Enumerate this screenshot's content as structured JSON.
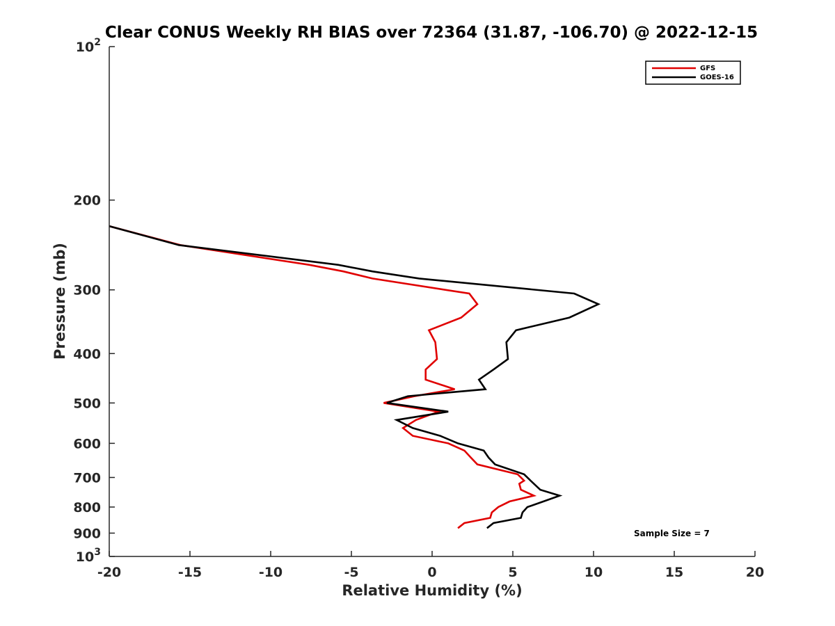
{
  "chart_data": {
    "type": "line",
    "title": "Clear CONUS Weekly RH BIAS over 72364 (31.87, -106.70) @ 2022-12-15",
    "xlabel": "Relative Humidity (%)",
    "ylabel": "Pressure (mb)",
    "xlim": [
      -20,
      20
    ],
    "ylim": [
      100,
      1000
    ],
    "yscale": "log",
    "y_reversed": true,
    "grid": false,
    "legend_position": "top-right",
    "x_ticks": [
      {
        "value": -20,
        "label": "-20"
      },
      {
        "value": -15,
        "label": "-15"
      },
      {
        "value": -10,
        "label": "-10"
      },
      {
        "value": -5,
        "label": "-5"
      },
      {
        "value": 0,
        "label": "0"
      },
      {
        "value": 5,
        "label": "5"
      },
      {
        "value": 10,
        "label": "10"
      },
      {
        "value": 15,
        "label": "15"
      },
      {
        "value": 20,
        "label": "20"
      }
    ],
    "y_ticks": [
      {
        "value": 100,
        "base": "10",
        "exp": "2"
      },
      {
        "value": 200,
        "base": "200",
        "exp": ""
      },
      {
        "value": 300,
        "base": "300",
        "exp": ""
      },
      {
        "value": 400,
        "base": "400",
        "exp": ""
      },
      {
        "value": 500,
        "base": "500",
        "exp": ""
      },
      {
        "value": 600,
        "base": "600",
        "exp": ""
      },
      {
        "value": 700,
        "base": "700",
        "exp": ""
      },
      {
        "value": 800,
        "base": "800",
        "exp": ""
      },
      {
        "value": 900,
        "base": "900",
        "exp": ""
      },
      {
        "value": 1000,
        "base": "10",
        "exp": "3"
      }
    ],
    "series": [
      {
        "name": "GFS",
        "color": "#e00000",
        "points": [
          [
            -20.0,
            225
          ],
          [
            -15.6,
            245
          ],
          [
            -7.6,
            268
          ],
          [
            -5.5,
            276
          ],
          [
            -3.7,
            285
          ],
          [
            2.3,
            305
          ],
          [
            2.8,
            320
          ],
          [
            1.8,
            340
          ],
          [
            -0.2,
            360
          ],
          [
            0.2,
            380
          ],
          [
            0.3,
            410
          ],
          [
            -0.4,
            430
          ],
          [
            -0.4,
            450
          ],
          [
            1.4,
            470
          ],
          [
            -1.1,
            485
          ],
          [
            -3.0,
            500
          ],
          [
            0.4,
            520
          ],
          [
            -1.0,
            540
          ],
          [
            -1.8,
            560
          ],
          [
            -1.2,
            580
          ],
          [
            1.0,
            600
          ],
          [
            2.0,
            620
          ],
          [
            2.4,
            640
          ],
          [
            2.8,
            660
          ],
          [
            5.3,
            690
          ],
          [
            5.7,
            710
          ],
          [
            5.4,
            720
          ],
          [
            5.5,
            740
          ],
          [
            6.3,
            760
          ],
          [
            4.8,
            780
          ],
          [
            4.1,
            800
          ],
          [
            3.7,
            820
          ],
          [
            3.6,
            840
          ],
          [
            2.0,
            860
          ],
          [
            1.6,
            880
          ]
        ]
      },
      {
        "name": "GOES-16",
        "color": "#000000",
        "points": [
          [
            -20.0,
            225
          ],
          [
            -15.7,
            245
          ],
          [
            -5.8,
            268
          ],
          [
            -3.7,
            276
          ],
          [
            -0.8,
            285
          ],
          [
            8.8,
            305
          ],
          [
            10.3,
            320
          ],
          [
            8.5,
            340
          ],
          [
            5.2,
            360
          ],
          [
            4.6,
            380
          ],
          [
            4.7,
            410
          ],
          [
            3.8,
            430
          ],
          [
            2.9,
            450
          ],
          [
            3.3,
            470
          ],
          [
            -1.5,
            485
          ],
          [
            -2.8,
            500
          ],
          [
            1.0,
            520
          ],
          [
            -2.2,
            540
          ],
          [
            -1.2,
            560
          ],
          [
            0.5,
            580
          ],
          [
            1.6,
            600
          ],
          [
            3.2,
            620
          ],
          [
            3.5,
            640
          ],
          [
            3.9,
            660
          ],
          [
            5.7,
            690
          ],
          [
            6.1,
            710
          ],
          [
            6.3,
            720
          ],
          [
            6.7,
            740
          ],
          [
            7.9,
            760
          ],
          [
            6.9,
            780
          ],
          [
            5.9,
            800
          ],
          [
            5.6,
            820
          ],
          [
            5.5,
            840
          ],
          [
            3.8,
            860
          ],
          [
            3.4,
            880
          ]
        ]
      }
    ],
    "annotations": [
      {
        "text": "Sample Size = 7"
      }
    ]
  }
}
